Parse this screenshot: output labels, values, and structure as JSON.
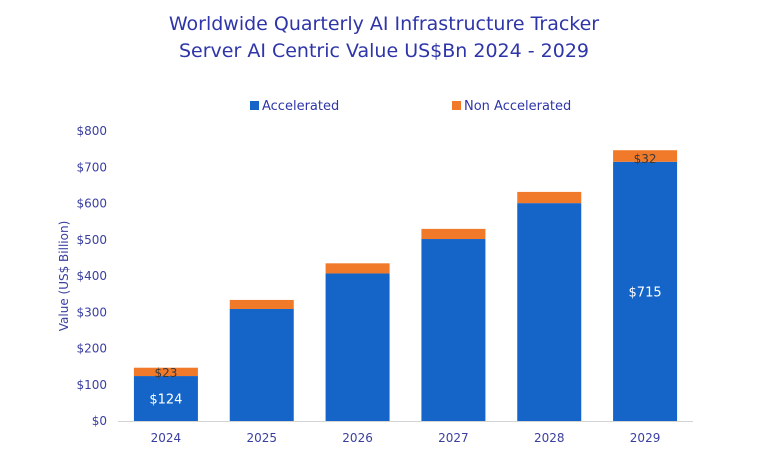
{
  "chart_data": {
    "type": "bar",
    "stacked": true,
    "title": "Worldwide Quarterly AI Infrastructure Tracker",
    "subtitle": "Server AI Centric Value US$Bn 2024 - 2029",
    "ylabel": "Value  (US$ Billion)",
    "ylim": [
      0,
      800
    ],
    "yticks": [
      "$0",
      "$100",
      "$200",
      "$300",
      "$400",
      "$500",
      "$600",
      "$700",
      "$800"
    ],
    "categories": [
      "2024",
      "2025",
      "2026",
      "2027",
      "2028",
      "2029"
    ],
    "legend_position": "top",
    "series": [
      {
        "name": "Accelerated",
        "color": "#1565c8",
        "values": [
          124,
          309,
          407,
          502,
          601,
          715
        ],
        "labels": [
          "$124",
          "",
          "",
          "",
          "",
          "$715"
        ]
      },
      {
        "name": "Non Accelerated",
        "color": "#f07a2a",
        "values": [
          23,
          25,
          28,
          28,
          31,
          32
        ],
        "labels": [
          "$23",
          "",
          "",
          "",
          "",
          "$32"
        ]
      }
    ]
  }
}
